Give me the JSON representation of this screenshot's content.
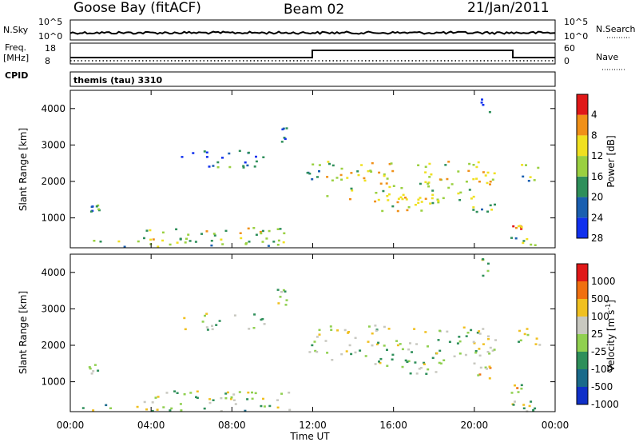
{
  "header": {
    "station": "Goose Bay (fitACF)",
    "beam": "Beam 02",
    "date": "21/Jan/2011"
  },
  "summary_panel": {
    "left_label": "N.Sky",
    "right_label": "N.Search",
    "left_ticks": [
      "10^5",
      "10^0"
    ],
    "right_ticks": [
      "10^5",
      "10^0"
    ]
  },
  "freq_panel": {
    "left_label_1": "Freq.",
    "left_label_2": "[MHz]",
    "right_label": "Nave",
    "left_ticks": [
      "18",
      "8"
    ],
    "right_ticks": [
      "60",
      "0"
    ],
    "cpid_label": "CPID",
    "program_name": "themis (tau) 3310"
  },
  "chart_data": [
    {
      "type": "heatmap",
      "name": "power",
      "ylabel": "Slant Range [km]",
      "ylim": [
        180,
        4500
      ],
      "yticks": [
        1000,
        2000,
        3000,
        4000
      ],
      "x_unit": "hours UT",
      "xlim": [
        0,
        24
      ],
      "colorbar": {
        "label": "Power [dB]",
        "levels": [
          "4",
          "8",
          "12",
          "16",
          "20",
          "24",
          "28"
        ],
        "colors": [
          "#1030ee",
          "#1a5fb0",
          "#2e8f5a",
          "#9ad040",
          "#f0e020",
          "#f09018",
          "#e01818"
        ]
      },
      "regions": [
        {
          "t0": 0.2,
          "t1": 11.0,
          "r0": 200,
          "r1": 420,
          "level": 0.45
        },
        {
          "t0": 3.5,
          "t1": 10.8,
          "r0": 420,
          "r1": 800,
          "level": 0.55
        },
        {
          "t0": 0.9,
          "t1": 1.4,
          "r0": 1200,
          "r1": 1500,
          "level": 0.3
        },
        {
          "t0": 5.4,
          "t1": 9.6,
          "r0": 2400,
          "r1": 2900,
          "level": 0.25
        },
        {
          "t0": 11.6,
          "t1": 12.3,
          "r0": 1800,
          "r1": 2500,
          "level": 0.3
        },
        {
          "t0": 12.5,
          "t1": 20.4,
          "r0": 1500,
          "r1": 2600,
          "level": 0.6
        },
        {
          "t0": 15.0,
          "t1": 18.5,
          "r0": 1200,
          "r1": 1700,
          "level": 0.6
        },
        {
          "t0": 19.8,
          "t1": 21.0,
          "r0": 1100,
          "r1": 1500,
          "level": 0.5
        },
        {
          "t0": 20.0,
          "t1": 21.0,
          "r0": 1800,
          "r1": 2300,
          "level": 0.7
        },
        {
          "t0": 21.8,
          "t1": 22.3,
          "r0": 700,
          "r1": 1000,
          "level": 0.85
        },
        {
          "t0": 22.0,
          "t1": 23.2,
          "r0": 2000,
          "r1": 2500,
          "level": 0.4
        },
        {
          "t0": 21.7,
          "t1": 23.0,
          "r0": 200,
          "r1": 500,
          "level": 0.5
        },
        {
          "t0": 10.2,
          "t1": 10.7,
          "r0": 3100,
          "r1": 3600,
          "level": 0.2
        },
        {
          "t0": 20.3,
          "t1": 20.8,
          "r0": 3800,
          "r1": 4400,
          "level": 0.2
        }
      ]
    },
    {
      "type": "heatmap",
      "name": "velocity",
      "ylabel": "Slant Range [km]",
      "ylim": [
        180,
        4500
      ],
      "yticks": [
        1000,
        2000,
        3000,
        4000
      ],
      "x_unit": "hours UT",
      "xlim": [
        0,
        24
      ],
      "xticks": [
        "00:00",
        "04:00",
        "08:00",
        "12:00",
        "16:00",
        "20:00",
        "00:00"
      ],
      "xlabel": "Time UT",
      "colorbar": {
        "label": "Velocity [m s",
        "label_exp": "-1",
        "label_end": "]",
        "levels": [
          "1000",
          "500",
          "100",
          "25",
          "-25",
          "-100",
          "-500",
          "-1000"
        ],
        "colors": [
          "#1030c8",
          "#1a6a8a",
          "#2e8f5a",
          "#90d050",
          "#c8c8c0",
          "#f0c020",
          "#f07010",
          "#e01818"
        ]
      },
      "regions": [
        {
          "t0": 0.2,
          "t1": 11.0,
          "r0": 200,
          "r1": 420,
          "level": 0.45
        },
        {
          "t0": 3.5,
          "t1": 10.8,
          "r0": 420,
          "r1": 800,
          "level": 0.5
        },
        {
          "t0": 0.9,
          "t1": 1.4,
          "r0": 1200,
          "r1": 1500,
          "level": 0.5
        },
        {
          "t0": 5.4,
          "t1": 9.6,
          "r0": 2400,
          "r1": 2900,
          "level": 0.5
        },
        {
          "t0": 11.6,
          "t1": 12.3,
          "r0": 1800,
          "r1": 2500,
          "level": 0.5
        },
        {
          "t0": 12.5,
          "t1": 20.4,
          "r0": 1500,
          "r1": 2600,
          "level": 0.5
        },
        {
          "t0": 15.0,
          "t1": 18.5,
          "r0": 1200,
          "r1": 1700,
          "level": 0.5
        },
        {
          "t0": 19.8,
          "t1": 21.0,
          "r0": 1100,
          "r1": 1500,
          "level": 0.65
        },
        {
          "t0": 20.0,
          "t1": 21.0,
          "r0": 1800,
          "r1": 2300,
          "level": 0.5
        },
        {
          "t0": 21.8,
          "t1": 22.3,
          "r0": 700,
          "r1": 1000,
          "level": 0.55
        },
        {
          "t0": 22.0,
          "t1": 23.2,
          "r0": 2000,
          "r1": 2500,
          "level": 0.5
        },
        {
          "t0": 21.7,
          "t1": 23.0,
          "r0": 200,
          "r1": 500,
          "level": 0.5
        },
        {
          "t0": 10.2,
          "t1": 10.7,
          "r0": 3100,
          "r1": 3600,
          "level": 0.5
        },
        {
          "t0": 20.3,
          "t1": 20.8,
          "r0": 3800,
          "r1": 4400,
          "level": 0.5
        }
      ]
    }
  ]
}
